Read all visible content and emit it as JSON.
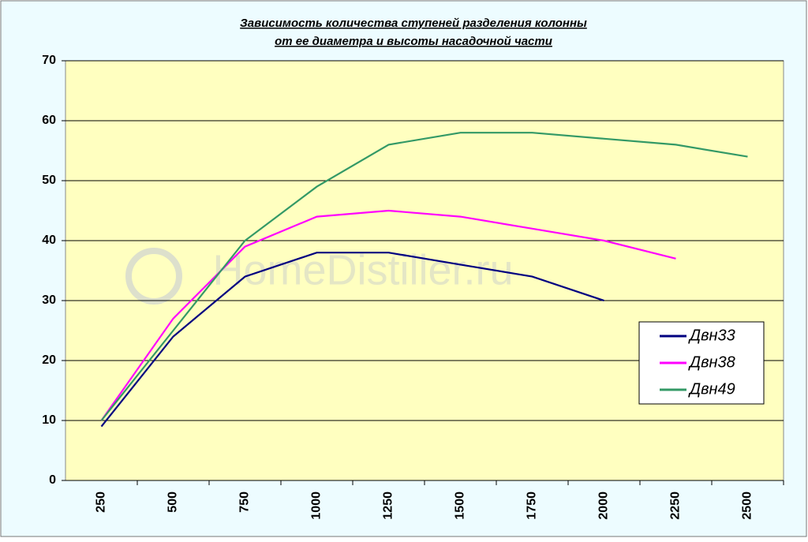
{
  "chart_data": {
    "type": "line",
    "title": "Зависимость количества ступеней разделения колонны",
    "subtitle": "от ее диаметра и высоты насадочной части",
    "watermark": "HomeDistiller.ru",
    "categories": [
      "250",
      "500",
      "750",
      "1000",
      "1250",
      "1500",
      "1750",
      "2000",
      "2250",
      "2500"
    ],
    "series": [
      {
        "name": "Двн33",
        "color": "#000080",
        "values": [
          9,
          24,
          34,
          38,
          38,
          36,
          34,
          30,
          null,
          null
        ]
      },
      {
        "name": "Двн38",
        "color": "#ff00ff",
        "values": [
          10,
          27,
          39,
          44,
          45,
          44,
          42,
          40,
          37,
          null
        ]
      },
      {
        "name": "Двн49",
        "color": "#339966",
        "values": [
          10,
          25,
          40,
          49,
          56,
          58,
          58,
          57,
          56,
          54
        ]
      }
    ],
    "ylim": [
      0,
      70
    ],
    "yticks": [
      0,
      10,
      20,
      30,
      40,
      50,
      60,
      70
    ],
    "grid": true,
    "legend": "right"
  }
}
